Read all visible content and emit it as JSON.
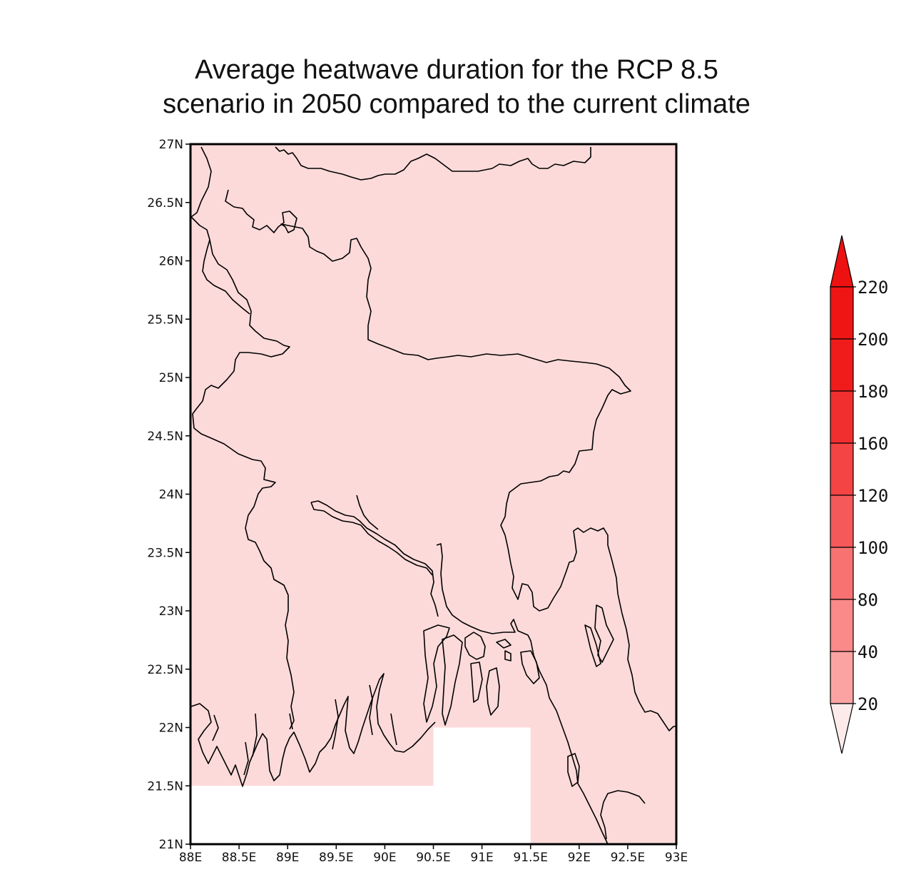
{
  "title": {
    "line1": "Average heatwave duration for the RCP 8.5",
    "line2": "scenario in 2050 compared to the current climate"
  },
  "map": {
    "lon_range": [
      88,
      93
    ],
    "lat_range": [
      21,
      27
    ],
    "fill_color": "#fddada",
    "missing_color": "#ffffff",
    "coastline_color": "#000000",
    "lat_ticks": [
      "27N",
      "26.5N",
      "26N",
      "25.5N",
      "25N",
      "24.5N",
      "24N",
      "23.5N",
      "23N",
      "22.5N",
      "22N",
      "21.5N",
      "21N"
    ],
    "lon_ticks": [
      "88E",
      "88.5E",
      "89E",
      "89.5E",
      "90E",
      "90.5E",
      "91E",
      "91.5E",
      "92E",
      "92.5E",
      "93E"
    ],
    "missing_regions": [
      {
        "lon": [
          88,
          90.5
        ],
        "lat": [
          21,
          21.5
        ]
      },
      {
        "lon": [
          90.5,
          91.5
        ],
        "lat": [
          21,
          22
        ]
      }
    ]
  },
  "colorbar": {
    "levels": [
      "20",
      "40",
      "80",
      "100",
      "120",
      "160",
      "180",
      "200",
      "220"
    ],
    "colors": [
      "#fdd7d7",
      "#fcc0c0",
      "#fba3a3",
      "#fa8989",
      "#f87272",
      "#f65959",
      "#f44444",
      "#f22f2f",
      "#f01c1c",
      "#ef1515"
    ],
    "under_color": "#fdebeb",
    "over_color": "#ee1111"
  }
}
